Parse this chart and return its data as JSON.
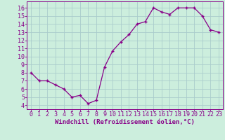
{
  "x": [
    0,
    1,
    2,
    3,
    4,
    5,
    6,
    7,
    8,
    9,
    10,
    11,
    12,
    13,
    14,
    15,
    16,
    17,
    18,
    19,
    20,
    21,
    22,
    23
  ],
  "y": [
    8.0,
    7.0,
    7.0,
    6.5,
    6.0,
    5.0,
    5.2,
    4.2,
    4.6,
    8.7,
    10.7,
    11.8,
    12.7,
    14.0,
    14.3,
    16.0,
    15.5,
    15.2,
    16.0,
    16.0,
    16.0,
    15.0,
    13.3,
    13.0
  ],
  "line_color": "#880088",
  "marker": "P",
  "marker_size": 2.5,
  "bg_color": "#cceedd",
  "grid_color": "#aacccc",
  "xlabel": "Windchill (Refroidissement éolien,°C)",
  "ylim": [
    3.5,
    16.8
  ],
  "xlim": [
    -0.5,
    23.5
  ],
  "yticks": [
    4,
    5,
    6,
    7,
    8,
    9,
    10,
    11,
    12,
    13,
    14,
    15,
    16
  ],
  "xticks": [
    0,
    1,
    2,
    3,
    4,
    5,
    6,
    7,
    8,
    9,
    10,
    11,
    12,
    13,
    14,
    15,
    16,
    17,
    18,
    19,
    20,
    21,
    22,
    23
  ],
  "tick_color": "#880088",
  "label_color": "#880088",
  "spine_color": "#880088",
  "font_size_xlabel": 6.5,
  "font_size_tick": 6.0
}
